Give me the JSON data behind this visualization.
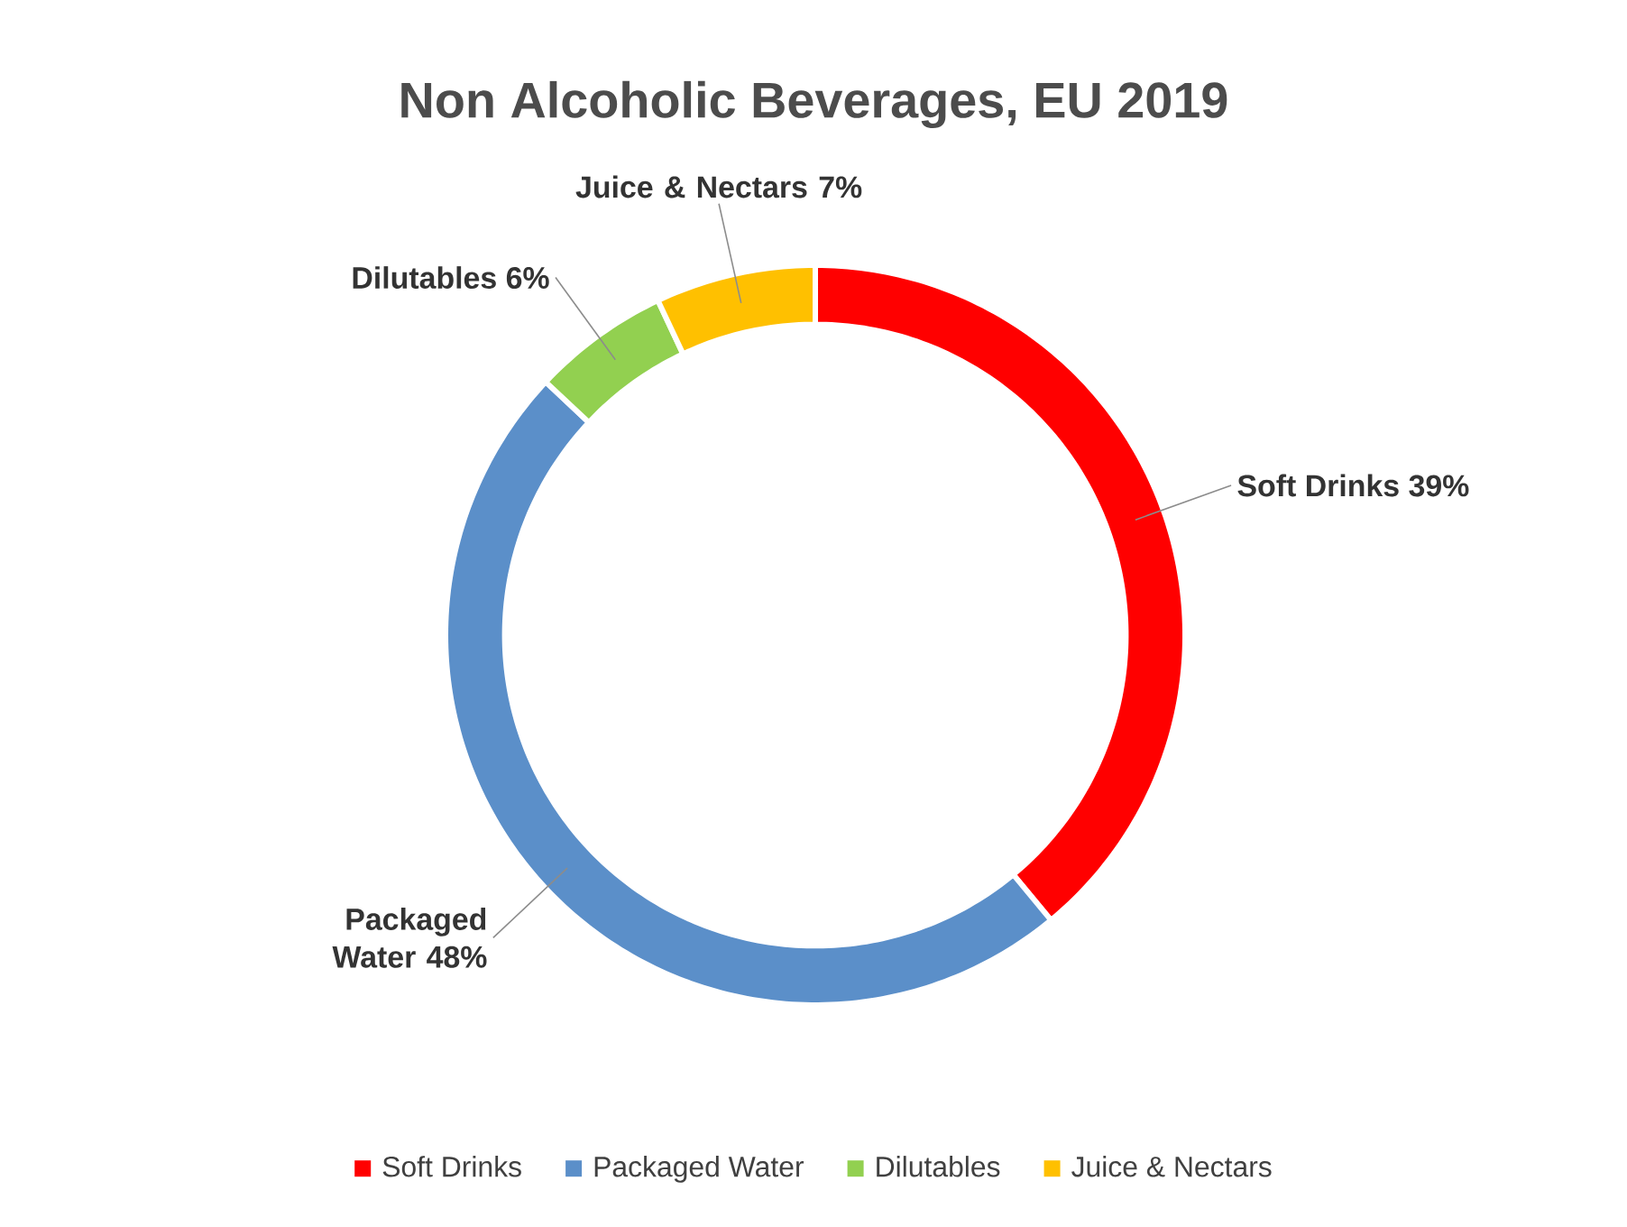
{
  "chart_data": {
    "type": "donut",
    "title": "Non Alcoholic Beverages, EU 2019",
    "categories": [
      "Soft Drinks",
      "Packaged Water",
      "Dilutables",
      "Juice & Nectars"
    ],
    "values": [
      39,
      48,
      6,
      7
    ],
    "value_labels": [
      "39%",
      "48%",
      "6%",
      "7%"
    ],
    "colors": [
      "#ff0000",
      "#5b8fc9",
      "#92d050",
      "#ffc000"
    ],
    "legend": "bottom"
  }
}
